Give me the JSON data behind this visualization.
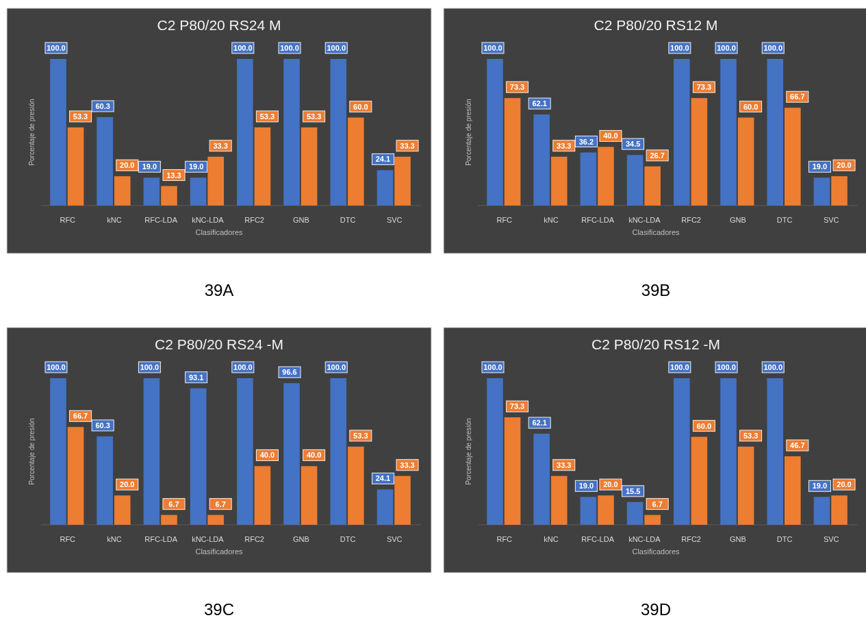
{
  "chart_data": [
    {
      "type": "bar",
      "title": "C2 P80/20 RS24 M",
      "xlabel": "Clasificadores",
      "ylabel": "Porcentaje de presión",
      "categories": [
        "RFC",
        "kNC",
        "RFC-LDA",
        "kNC-LDA",
        "RFC2",
        "GNB",
        "DTC",
        "SVC"
      ],
      "series": [
        {
          "color": "#4472c4",
          "values": [
            100,
            60.3,
            19.0,
            19.0,
            100,
            100,
            100,
            24.1
          ],
          "value_labels": [
            "100.0",
            "60.3",
            "19.0",
            "19.0",
            "100.0",
            "100.0",
            "100.0",
            "24.1"
          ]
        },
        {
          "color": "#ed7d31",
          "values": [
            53.3,
            20.0,
            13.3,
            33.3,
            53.3,
            53.3,
            60.0,
            33.3
          ],
          "value_labels": [
            "53.3",
            "20.0",
            "13.3",
            "33.3",
            "53.3",
            "53.3",
            "60.0",
            "33.3"
          ]
        }
      ],
      "annotations": [
        "39A"
      ]
    },
    {
      "type": "bar",
      "title": "C2 P80/20 RS12 M",
      "xlabel": "Clasificadores",
      "ylabel": "Porcentaje de presión",
      "categories": [
        "RFC",
        "kNC",
        "RFC-LDA",
        "kNC-LDA",
        "RFC2",
        "GNB",
        "DTC",
        "SVC"
      ],
      "series": [
        {
          "color": "#4472c4",
          "values": [
            100,
            62.1,
            36.2,
            34.5,
            100,
            100,
            100,
            19.0
          ],
          "value_labels": [
            "100.0",
            "62.1",
            "36.2",
            "34.5",
            "100.0",
            "100.0",
            "100.0",
            "19.0"
          ]
        },
        {
          "color": "#ed7d31",
          "values": [
            73.3,
            33.3,
            40.0,
            26.7,
            73.3,
            60.0,
            66.7,
            20.0
          ],
          "value_labels": [
            "73.3",
            "33.3",
            "40.0",
            "26.7",
            "73.3",
            "60.0",
            "66.7",
            "20.0"
          ]
        }
      ],
      "annotations": [
        "39B"
      ]
    },
    {
      "type": "bar",
      "title": "C2 P80/20 RS24 -M",
      "xlabel": "Clasificadores",
      "ylabel": "Porcentaje de presión",
      "categories": [
        "RFC",
        "kNC",
        "RFC-LDA",
        "kNC-LDA",
        "RFC2",
        "GNB",
        "DTC",
        "SVC"
      ],
      "series": [
        {
          "color": "#4472c4",
          "values": [
            100,
            60.3,
            100,
            93.1,
            100,
            96.6,
            100,
            24.1
          ],
          "value_labels": [
            "100.0",
            "60.3",
            "100.0",
            "93.1",
            "100.0",
            "96.6",
            "100.0",
            "24.1"
          ]
        },
        {
          "color": "#ed7d31",
          "values": [
            66.7,
            20.0,
            6.7,
            6.7,
            40.0,
            40.0,
            53.3,
            33.3
          ],
          "value_labels": [
            "66.7",
            "20.0",
            "6.7",
            "6.7",
            "40.0",
            "40.0",
            "53.3",
            "33.3"
          ]
        }
      ],
      "annotations": [
        "39C"
      ]
    },
    {
      "type": "bar",
      "title": "C2 P80/20 RS12 -M",
      "xlabel": "Clasificadores",
      "ylabel": "Porcentaje de presión",
      "categories": [
        "RFC",
        "kNC",
        "RFC-LDA",
        "kNC-LDA",
        "RFC2",
        "GNB",
        "DTC",
        "SVC"
      ],
      "series": [
        {
          "color": "#4472c4",
          "values": [
            100,
            62.1,
            19.0,
            15.5,
            100,
            100,
            100,
            19.0
          ],
          "value_labels": [
            "100.0",
            "62.1",
            "19.0",
            "15.5",
            "100.0",
            "100.0",
            "100.0",
            "19.0"
          ]
        },
        {
          "color": "#ed7d31",
          "values": [
            73.3,
            33.3,
            20.0,
            6.7,
            60.0,
            53.3,
            46.7,
            20.0
          ],
          "value_labels": [
            "73.3",
            "33.3",
            "20.0",
            "6.7",
            "60.0",
            "53.3",
            "46.7",
            "20.0"
          ]
        }
      ],
      "annotations": [
        "39D"
      ]
    }
  ]
}
